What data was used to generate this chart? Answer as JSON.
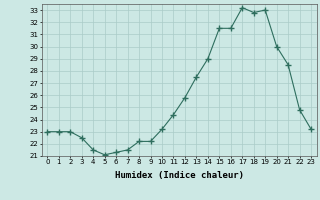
{
  "x": [
    0,
    1,
    2,
    3,
    4,
    5,
    6,
    7,
    8,
    9,
    10,
    11,
    12,
    13,
    14,
    15,
    16,
    17,
    18,
    19,
    20,
    21,
    22,
    23
  ],
  "y": [
    23,
    23,
    23,
    22.5,
    21.5,
    21.1,
    21.3,
    21.5,
    22.2,
    22.2,
    23.2,
    24.4,
    25.8,
    27.5,
    29,
    31.5,
    31.5,
    33.2,
    32.8,
    33,
    30,
    28.5,
    24.8,
    23.2
  ],
  "line_color": "#2e6e5e",
  "marker": "+",
  "marker_size": 4,
  "bg_color": "#cce8e4",
  "grid_major_color": "#aaccc8",
  "grid_minor_color": "#bdddd9",
  "xlabel": "Humidex (Indice chaleur)",
  "ylim": [
    21,
    33.5
  ],
  "yticks": [
    21,
    22,
    23,
    24,
    25,
    26,
    27,
    28,
    29,
    30,
    31,
    32,
    33
  ],
  "xticks": [
    0,
    1,
    2,
    3,
    4,
    5,
    6,
    7,
    8,
    9,
    10,
    11,
    12,
    13,
    14,
    15,
    16,
    17,
    18,
    19,
    20,
    21,
    22,
    23
  ],
  "xlim": [
    -0.5,
    23.5
  ]
}
